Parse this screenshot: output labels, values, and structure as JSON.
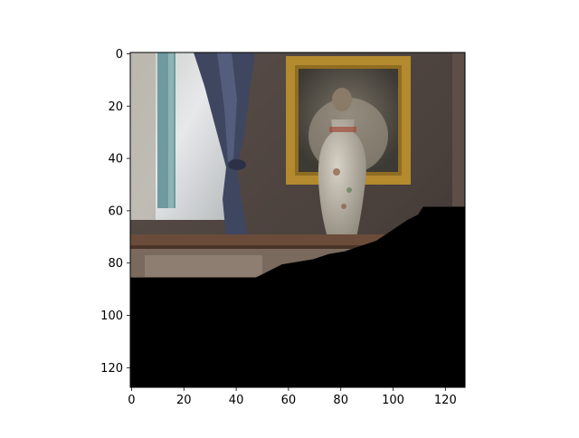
{
  "chart_data": {
    "type": "image",
    "image_shape": [
      128,
      128
    ],
    "xlim": [
      -0.5,
      127.5
    ],
    "ylim": [
      127.5,
      -0.5
    ],
    "x_ticks": [
      0,
      20,
      40,
      60,
      80,
      100,
      120
    ],
    "y_ticks": [
      0,
      20,
      40,
      60,
      80,
      100,
      120
    ],
    "x_tick_labels": [
      "0",
      "20",
      "40",
      "60",
      "80",
      "100",
      "120"
    ],
    "y_tick_labels": [
      "0",
      "20",
      "40",
      "60",
      "80",
      "100",
      "120"
    ],
    "grid": false,
    "legend": "none",
    "image_description": "Pixelated photograph of a dim interior: a window with teal curtains at left, dark blue patterned curtain tied back, a gilded framed portrait on a textured wall, a Chinese porcelain vase on a wooden mantel; the lower part of the image is masked black along a stepped boundary.",
    "mask_boundary": {
      "description": "Lower region (image rows below this boundary) is pure black; boundary given as [column, row] in image pixel units.",
      "points": [
        [
          0,
          86
        ],
        [
          48,
          86
        ],
        [
          52,
          84
        ],
        [
          58,
          81
        ],
        [
          64,
          80
        ],
        [
          70,
          79
        ],
        [
          76,
          77
        ],
        [
          82,
          76
        ],
        [
          88,
          74
        ],
        [
          94,
          72
        ],
        [
          100,
          68
        ],
        [
          106,
          64
        ],
        [
          110,
          62
        ],
        [
          112,
          59
        ],
        [
          128,
          59
        ]
      ]
    },
    "colors": {
      "mask": "#000000",
      "wall": "#4e4440",
      "frame_gold": "#b38a2e",
      "curtain_blue": "#3e4660",
      "window_light": "#d9dcdd",
      "window_teal": "#6e9aa0",
      "vase": "#b9b0a0",
      "mantel": "#6b4c3a"
    }
  }
}
